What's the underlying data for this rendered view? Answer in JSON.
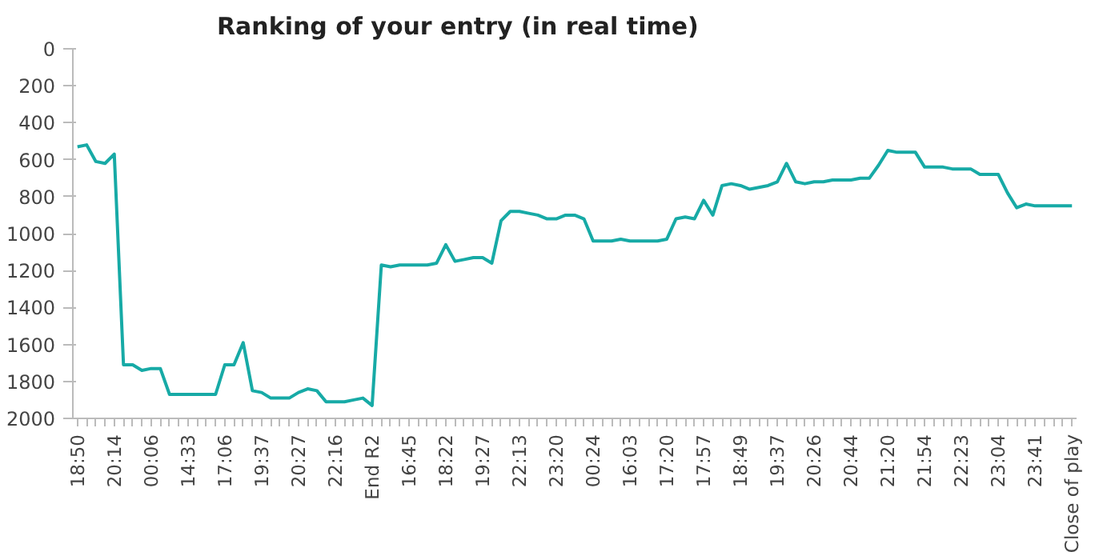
{
  "chart_data": {
    "type": "line",
    "title": "Ranking of your entry (in real time)",
    "categories": [
      "18:50",
      null,
      null,
      null,
      "20:14",
      null,
      null,
      null,
      "00:06",
      null,
      null,
      null,
      "14:33",
      null,
      null,
      null,
      "17:06",
      null,
      null,
      null,
      "19:37",
      null,
      null,
      null,
      "20:27",
      null,
      null,
      null,
      "22:16",
      null,
      null,
      null,
      "End R2",
      null,
      null,
      null,
      "16:45",
      null,
      null,
      null,
      "18:22",
      null,
      null,
      null,
      "19:27",
      null,
      null,
      null,
      "22:13",
      null,
      null,
      null,
      "23:20",
      null,
      null,
      null,
      "00:24",
      null,
      null,
      null,
      "16:03",
      null,
      null,
      null,
      "17:20",
      null,
      null,
      null,
      "17:57",
      null,
      null,
      null,
      "18:49",
      null,
      null,
      null,
      "19:37",
      null,
      null,
      null,
      "20:26",
      null,
      null,
      null,
      "20:44",
      null,
      null,
      null,
      "21:20",
      null,
      null,
      null,
      "21:54",
      null,
      null,
      null,
      "22:23",
      null,
      null,
      null,
      "23:04",
      null,
      null,
      null,
      "23:41",
      null,
      null,
      null,
      "Close of play"
    ],
    "series": [
      {
        "color": "#17aaa6",
        "values": [
          530,
          520,
          610,
          620,
          570,
          1710,
          1710,
          1740,
          1730,
          1730,
          1870,
          1870,
          1870,
          1870,
          1870,
          1870,
          1710,
          1710,
          1590,
          1850,
          1860,
          1890,
          1890,
          1890,
          1860,
          1840,
          1850,
          1910,
          1910,
          1910,
          1900,
          1890,
          1930,
          1170,
          1180,
          1170,
          1170,
          1170,
          1170,
          1160,
          1060,
          1150,
          1140,
          1130,
          1130,
          1160,
          930,
          880,
          880,
          890,
          900,
          920,
          920,
          900,
          900,
          920,
          1040,
          1040,
          1040,
          1030,
          1040,
          1040,
          1040,
          1040,
          1030,
          920,
          910,
          920,
          820,
          900,
          740,
          730,
          740,
          760,
          750,
          740,
          720,
          620,
          720,
          730,
          720,
          720,
          710,
          710,
          710,
          700,
          700,
          630,
          550,
          560,
          560,
          560,
          640,
          640,
          640,
          650,
          650,
          650,
          680,
          680,
          680,
          780,
          860,
          840,
          850,
          850,
          850,
          850,
          850
        ]
      }
    ],
    "ylim": [
      2000,
      0
    ],
    "yticks": [
      0,
      200,
      400,
      600,
      800,
      1000,
      1200,
      1400,
      1600,
      1800,
      2000
    ],
    "grid": false,
    "marker": "none",
    "line_style": "solid"
  }
}
